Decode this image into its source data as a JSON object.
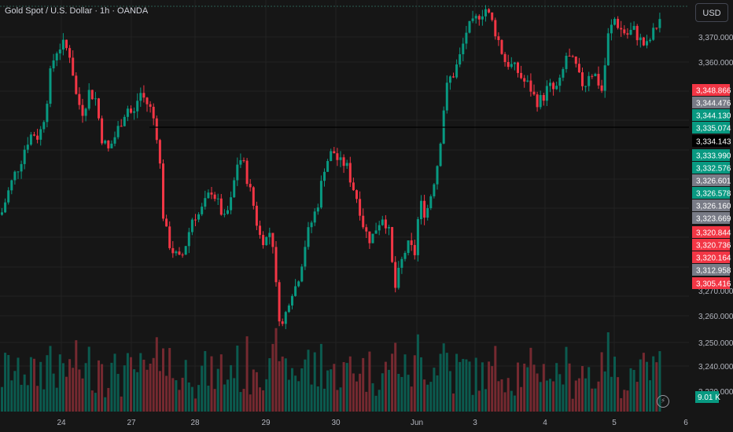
{
  "header": {
    "title": "Gold Spot / U.S. Dollar · 1h · OANDA"
  },
  "scale": {
    "currency_label": "USD"
  },
  "colors": {
    "up": "#089981",
    "down": "#f23645",
    "neutral": "#787b86",
    "grid": "#222222",
    "background": "#161616"
  },
  "icons": {
    "lightning": "lightning-icon"
  },
  "chart_data": {
    "type": "candlestick",
    "instrument": "Gold Spot / U.S. Dollar",
    "interval": "1h",
    "broker": "OANDA",
    "y_axis": {
      "ticks": [
        "3,370.000",
        "3,360.000",
        "3,270.000",
        "3,260.000",
        "3,250.000",
        "3,240.000",
        "3,230.000"
      ],
      "range": [
        3225,
        3382
      ]
    },
    "x_axis": {
      "ticks": [
        "24",
        "27",
        "28",
        "29",
        "30",
        "Jun",
        "3",
        "4",
        "5",
        "6"
      ]
    },
    "horizontal_line": 3334.143,
    "price_labels": [
      {
        "value": "3,348.866",
        "type": "down"
      },
      {
        "value": "3,344.476",
        "type": "neutral"
      },
      {
        "value": "3,344.130",
        "type": "up"
      },
      {
        "value": "3,335.074",
        "type": "up"
      },
      {
        "value": "3,334.143",
        "type": "line"
      },
      {
        "value": "3,333.990",
        "type": "up"
      },
      {
        "value": "3,332.576",
        "type": "up"
      },
      {
        "value": "3,326.601",
        "type": "neutral"
      },
      {
        "value": "3,326.578",
        "type": "up"
      },
      {
        "value": "3,326.160",
        "type": "neutral"
      },
      {
        "value": "3,323.669",
        "type": "neutral"
      },
      {
        "value": "3,320.844",
        "type": "down"
      },
      {
        "value": "3,320.736",
        "type": "down"
      },
      {
        "value": "3,320.164",
        "type": "down"
      },
      {
        "value": "3,312.958",
        "type": "neutral"
      },
      {
        "value": "3,305.416",
        "type": "down"
      }
    ],
    "volume_label": "9.01 K",
    "close_path": [
      [
        0,
        3300
      ],
      [
        8,
        3308
      ],
      [
        16,
        3315
      ],
      [
        24,
        3320
      ],
      [
        32,
        3328
      ],
      [
        40,
        3332
      ],
      [
        48,
        3330
      ],
      [
        56,
        3340
      ],
      [
        64,
        3358
      ],
      [
        72,
        3365
      ],
      [
        80,
        3366
      ],
      [
        88,
        3362
      ],
      [
        96,
        3345
      ],
      [
        104,
        3340
      ],
      [
        112,
        3348
      ],
      [
        120,
        3345
      ],
      [
        128,
        3330
      ],
      [
        136,
        3325
      ],
      [
        144,
        3330
      ],
      [
        152,
        3336
      ],
      [
        160,
        3342
      ],
      [
        168,
        3338
      ],
      [
        176,
        3348
      ],
      [
        184,
        3344
      ],
      [
        192,
        3340
      ],
      [
        200,
        3328
      ],
      [
        206,
        3300
      ],
      [
        212,
        3290
      ],
      [
        220,
        3285
      ],
      [
        228,
        3282
      ],
      [
        236,
        3290
      ],
      [
        244,
        3300
      ],
      [
        252,
        3300
      ],
      [
        260,
        3305
      ],
      [
        268,
        3310
      ],
      [
        276,
        3304
      ],
      [
        284,
        3298
      ],
      [
        292,
        3305
      ],
      [
        300,
        3320
      ],
      [
        306,
        3322
      ],
      [
        312,
        3315
      ],
      [
        320,
        3305
      ],
      [
        328,
        3292
      ],
      [
        336,
        3290
      ],
      [
        344,
        3295
      ],
      [
        350,
        3270
      ],
      [
        356,
        3255
      ],
      [
        362,
        3262
      ],
      [
        368,
        3270
      ],
      [
        374,
        3272
      ],
      [
        380,
        3278
      ],
      [
        386,
        3288
      ],
      [
        392,
        3295
      ],
      [
        398,
        3300
      ],
      [
        404,
        3306
      ],
      [
        410,
        3318
      ],
      [
        416,
        3322
      ],
      [
        422,
        3325
      ],
      [
        430,
        3320
      ],
      [
        438,
        3320
      ],
      [
        446,
        3312
      ],
      [
        454,
        3305
      ],
      [
        462,
        3294
      ],
      [
        470,
        3290
      ],
      [
        478,
        3296
      ],
      [
        486,
        3300
      ],
      [
        494,
        3292
      ],
      [
        500,
        3270
      ],
      [
        506,
        3278
      ],
      [
        512,
        3285
      ],
      [
        518,
        3288
      ],
      [
        526,
        3285
      ],
      [
        532,
        3305
      ],
      [
        540,
        3300
      ],
      [
        548,
        3310
      ],
      [
        556,
        3322
      ],
      [
        562,
        3340
      ],
      [
        568,
        3352
      ],
      [
        576,
        3355
      ],
      [
        584,
        3362
      ],
      [
        592,
        3372
      ],
      [
        600,
        3374
      ],
      [
        608,
        3378
      ],
      [
        616,
        3380
      ],
      [
        624,
        3375
      ],
      [
        632,
        3368
      ],
      [
        640,
        3360
      ],
      [
        648,
        3358
      ],
      [
        656,
        3356
      ],
      [
        664,
        3352
      ],
      [
        672,
        3350
      ],
      [
        680,
        3344
      ],
      [
        688,
        3345
      ],
      [
        696,
        3350
      ],
      [
        704,
        3348
      ],
      [
        712,
        3352
      ],
      [
        718,
        3362
      ],
      [
        724,
        3360
      ],
      [
        730,
        3358
      ],
      [
        736,
        3352
      ],
      [
        742,
        3350
      ],
      [
        748,
        3356
      ],
      [
        756,
        3354
      ],
      [
        764,
        3348
      ],
      [
        772,
        3370
      ],
      [
        780,
        3376
      ],
      [
        788,
        3372
      ],
      [
        796,
        3370
      ],
      [
        804,
        3372
      ],
      [
        812,
        3368
      ],
      [
        820,
        3365
      ],
      [
        828,
        3370
      ],
      [
        836,
        3375
      ],
      [
        842,
        3380
      ]
    ]
  }
}
